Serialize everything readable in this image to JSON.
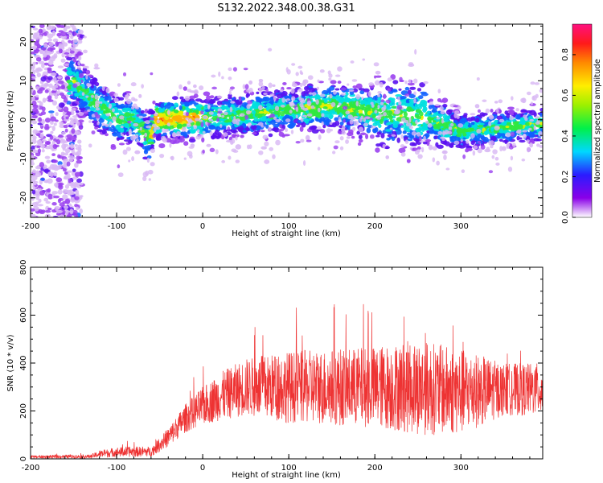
{
  "figure": {
    "title": "S132.2022.348.00.38.G31"
  },
  "chart_data": [
    {
      "type": "heatmap",
      "title": "S132.2022.348.00.38.G31",
      "xlabel": "Height of straight line (km)",
      "ylabel": "Frequency (Hz)",
      "xlim": [
        -200,
        395
      ],
      "ylim": [
        -25,
        24.5
      ],
      "x_ticks": [
        "-200",
        "-100",
        "0",
        "100",
        "200",
        "300"
      ],
      "y_ticks": [
        "20",
        "10",
        "0",
        "-10",
        "-20"
      ],
      "colorbar": {
        "label": "Normalized spectral amplitude",
        "range": [
          0,
          0.95
        ],
        "ticks": [
          "0.0",
          "0.2",
          "0.4",
          "0.6",
          "0.8"
        ]
      },
      "ridge": {
        "description_points": [
          [
            -150,
            10
          ],
          [
            -130,
            5
          ],
          [
            -100,
            0
          ],
          [
            -80,
            0
          ],
          [
            -62,
            -5
          ],
          [
            -55,
            0
          ],
          [
            0,
            0.5
          ],
          [
            50,
            1.5
          ],
          [
            100,
            2.5
          ],
          [
            150,
            3.5
          ],
          [
            200,
            2
          ],
          [
            250,
            1
          ],
          [
            300,
            -3
          ],
          [
            350,
            -2
          ],
          [
            395,
            -1
          ]
        ]
      }
    },
    {
      "type": "line",
      "xlabel": "Height of straight line (km)",
      "ylabel": "SNR (10 * v/v)",
      "xlim": [
        -200,
        395
      ],
      "ylim": [
        0,
        800
      ],
      "x_ticks": [
        "-200",
        "-100",
        "0",
        "100",
        "200",
        "300"
      ],
      "y_ticks": [
        "800",
        "600",
        "400",
        "200",
        "0"
      ],
      "color": "#ee3333",
      "envelope": {
        "x": [
          -200,
          -130,
          -120,
          -100,
          -80,
          -60,
          -40,
          -20,
          0,
          20,
          50,
          100,
          150,
          200,
          250,
          300,
          350,
          395
        ],
        "mean": [
          8,
          10,
          20,
          28,
          30,
          30,
          90,
          170,
          220,
          260,
          300,
          300,
          300,
          300,
          300,
          280,
          290,
          290
        ],
        "spread": [
          6,
          8,
          15,
          20,
          22,
          20,
          40,
          60,
          80,
          100,
          120,
          150,
          160,
          170,
          200,
          180,
          110,
          110
        ]
      }
    }
  ]
}
